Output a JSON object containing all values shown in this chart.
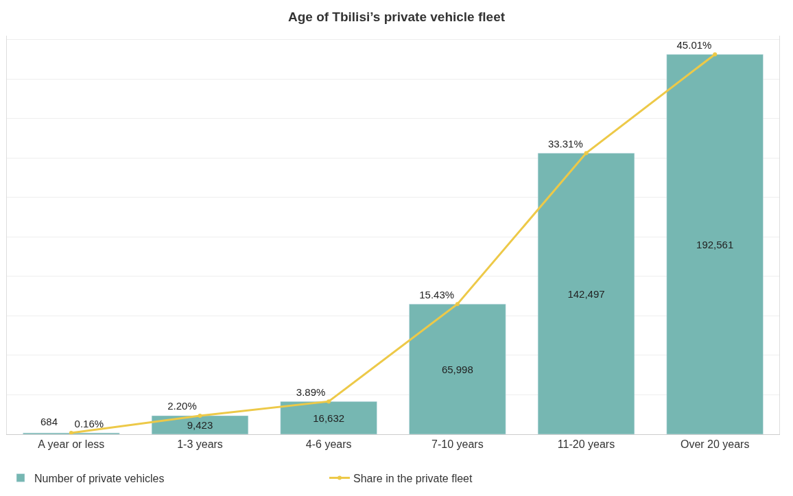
{
  "chart_data": {
    "type": "bar",
    "title": "Age of Tbilisi’s private vehicle fleet",
    "categories": [
      "A year or less",
      "1-3 years",
      "4-6 years",
      "7-10 years",
      "11-20 years",
      "Over 20 years"
    ],
    "series": [
      {
        "name": "Number of private vehicles",
        "color": "#76b7b2",
        "values": [
          684,
          9423,
          16632,
          65998,
          142497,
          192561
        ],
        "value_labels": [
          "684",
          "9,423",
          "16,632",
          "65,998",
          "142,497",
          "192,561"
        ]
      },
      {
        "name": "Share in the private fleet",
        "type": "line",
        "axis": "y2",
        "color": "#edc948",
        "marker": "circle",
        "values": [
          0.16,
          2.2,
          3.89,
          15.43,
          33.31,
          45.01
        ],
        "value_labels": [
          "0.16%",
          "2.20%",
          "3.89%",
          "15.43%",
          "33.31%",
          "45.01%"
        ]
      }
    ],
    "ylim": [
      0,
      202000
    ],
    "yticks": [
      {
        "value": 0,
        "label": null
      },
      {
        "value": 20000,
        "label": null
      },
      {
        "value": 40000,
        "label": null
      },
      {
        "value": 60000,
        "label": null
      },
      {
        "value": 80000,
        "label": null
      },
      {
        "value": 100000,
        "label": null
      },
      {
        "value": 120000,
        "label": null
      },
      {
        "value": 140000,
        "label": null
      },
      {
        "value": 160000,
        "label": null
      },
      {
        "value": 180000,
        "label": null
      },
      {
        "value": 200000,
        "label": null
      }
    ],
    "y2lim": [
      0,
      47.22
    ],
    "grid": "y",
    "legend": "bottom left",
    "tick_labels": "x"
  }
}
